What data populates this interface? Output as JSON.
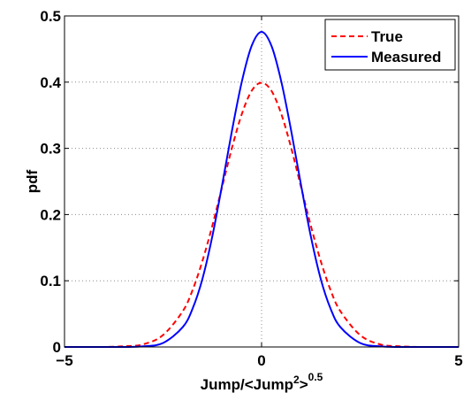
{
  "chart_data": {
    "type": "line",
    "title": "",
    "xlabel": "Jump/<Jump²>⁰·⁵",
    "xlabel_parts": {
      "base": "Jump/<Jump",
      "sup1": "2",
      "mid": ">",
      "sup2": "0.5"
    },
    "ylabel": "pdf",
    "xlim": [
      -5,
      5
    ],
    "ylim": [
      0,
      0.5
    ],
    "x_ticks": [
      -5,
      0,
      5
    ],
    "x_tick_labels": [
      "−5",
      "0",
      "5"
    ],
    "y_ticks": [
      0,
      0.1,
      0.2,
      0.3,
      0.4,
      0.5
    ],
    "y_tick_labels": [
      "0",
      "0.1",
      "0.2",
      "0.3",
      "0.4",
      "0.5"
    ],
    "grid": true,
    "legend_position": "top-right",
    "x": [
      -5,
      -4.5,
      -4,
      -3.5,
      -3,
      -2.5,
      -2,
      -1.75,
      -1.5,
      -1.25,
      -1,
      -0.75,
      -0.5,
      -0.25,
      0,
      0.25,
      0.5,
      0.75,
      1,
      1.25,
      1.5,
      1.75,
      2,
      2.5,
      3,
      3.5,
      4,
      4.5,
      5
    ],
    "series": [
      {
        "name": "True",
        "color": "#ff0000",
        "style": "dashed",
        "values": [
          0,
          0,
          0,
          0.001,
          0.004,
          0.018,
          0.054,
          0.086,
          0.13,
          0.183,
          0.242,
          0.301,
          0.352,
          0.387,
          0.399,
          0.387,
          0.352,
          0.301,
          0.242,
          0.183,
          0.13,
          0.086,
          0.054,
          0.018,
          0.004,
          0.001,
          0,
          0,
          0
        ]
      },
      {
        "name": "Measured",
        "color": "#0000ff",
        "style": "solid",
        "values": [
          0,
          0,
          0,
          0,
          0.001,
          0.006,
          0.03,
          0.058,
          0.103,
          0.167,
          0.245,
          0.327,
          0.401,
          0.455,
          0.476,
          0.455,
          0.401,
          0.327,
          0.245,
          0.167,
          0.103,
          0.058,
          0.03,
          0.006,
          0.001,
          0,
          0,
          0,
          0
        ]
      }
    ]
  }
}
